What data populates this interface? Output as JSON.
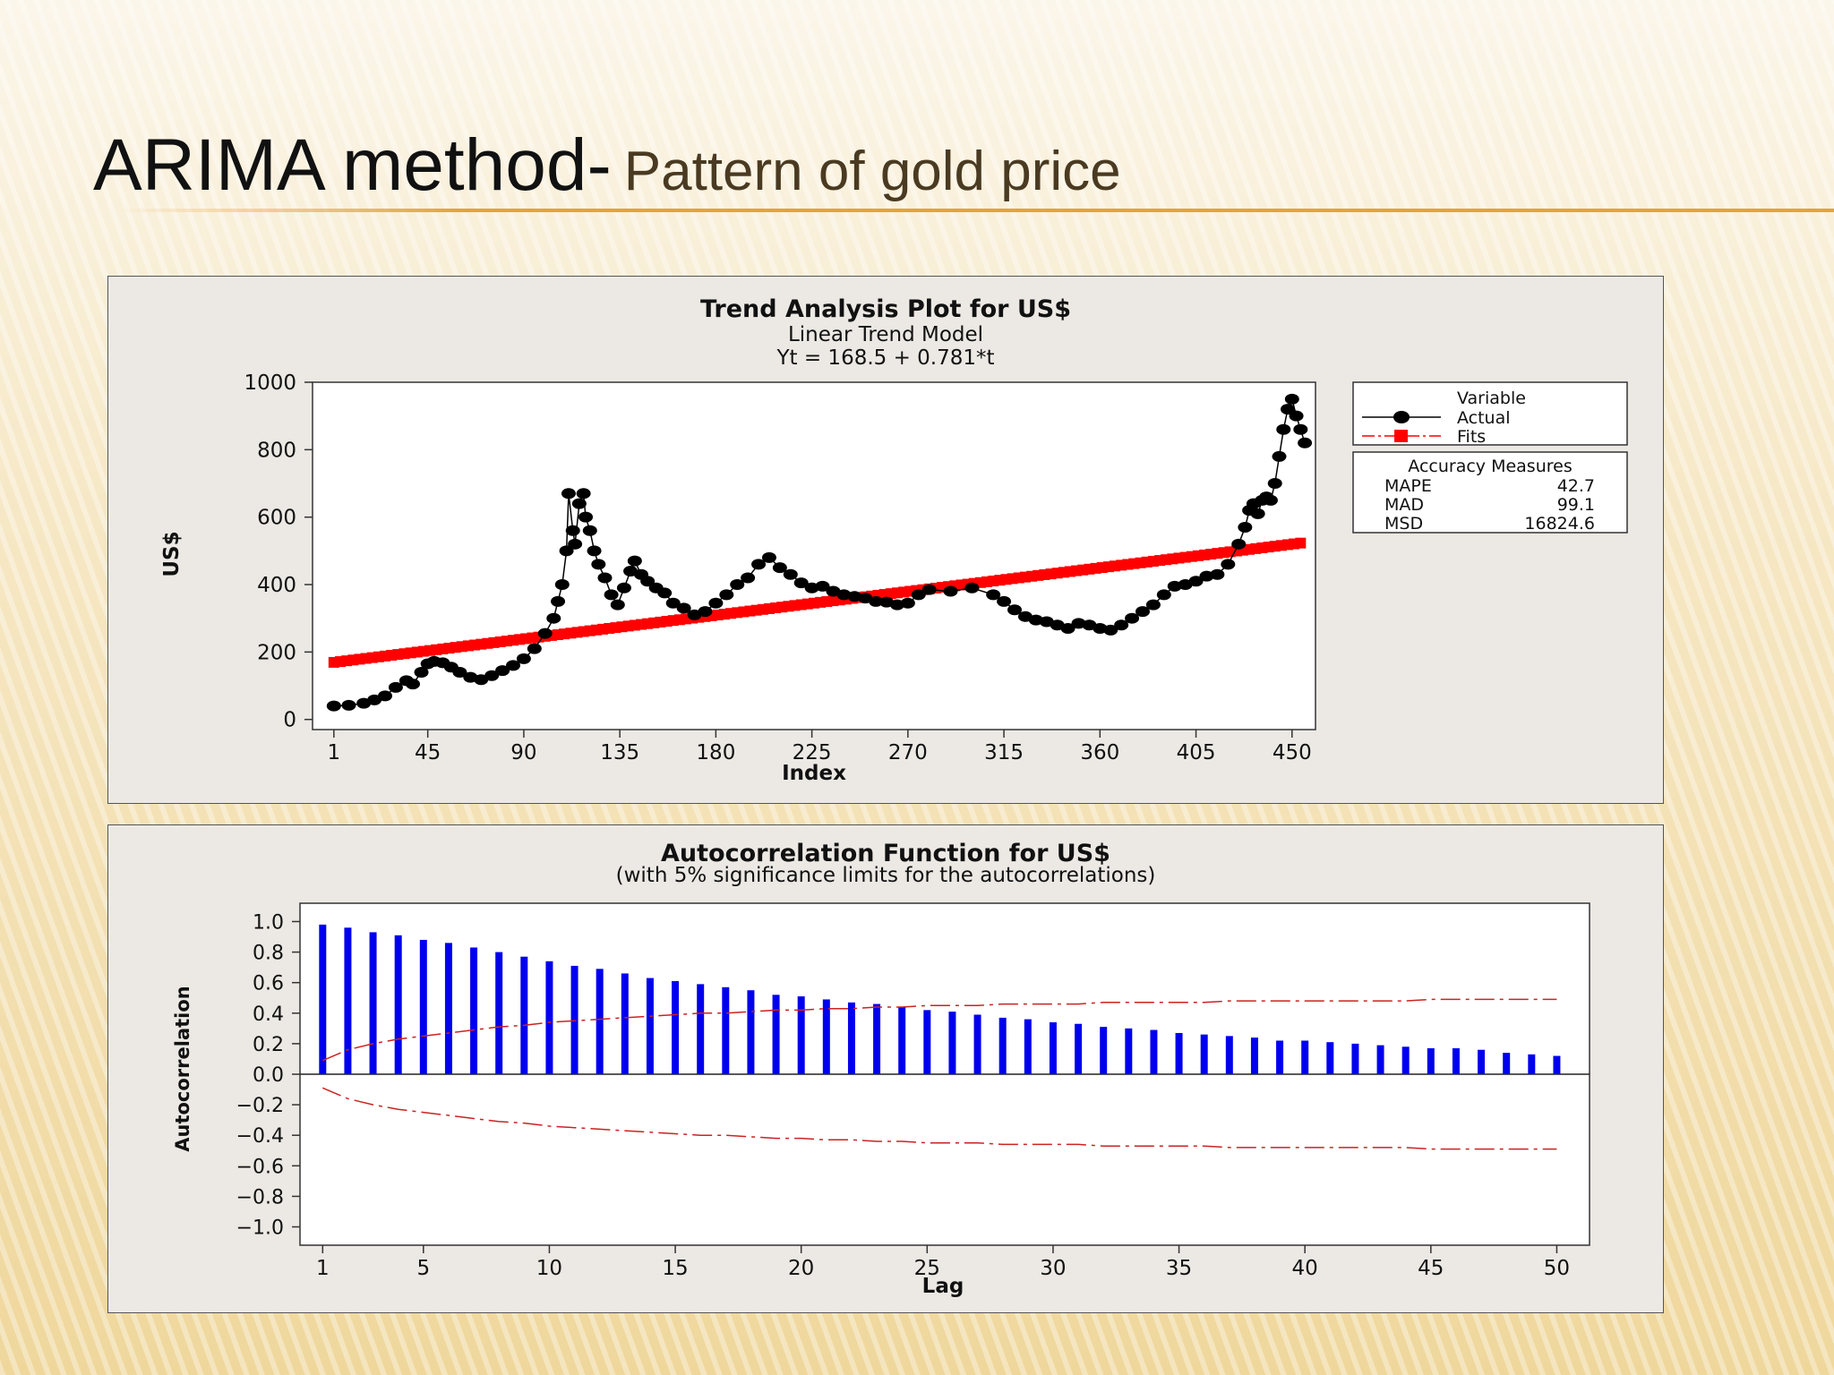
{
  "slide": {
    "title_main": "ARIMA method-",
    "title_sub": "Pattern of gold price",
    "accent_color": "#e8a13a"
  },
  "chart_data": [
    {
      "type": "line",
      "title": "Trend Analysis Plot for US$",
      "subtitle": "Linear Trend Model",
      "equation": "Yt = 168.5 + 0.781*t",
      "xlabel": "Index",
      "ylabel": "US$",
      "xticks": [
        1,
        45,
        90,
        135,
        180,
        225,
        270,
        315,
        360,
        405,
        450
      ],
      "yticks": [
        0,
        200,
        400,
        600,
        800,
        1000
      ],
      "xlim": [
        -9,
        461
      ],
      "ylim": [
        -30,
        1000
      ],
      "grid": false,
      "legend": {
        "title": "Variable",
        "position": "right",
        "entries": [
          {
            "name": "Actual",
            "color": "#000000",
            "marker": "circle"
          },
          {
            "name": "Fits",
            "color": "#ff0000",
            "marker": "square"
          }
        ]
      },
      "accuracy": {
        "title": "Accuracy Measures",
        "rows": [
          {
            "name": "MAPE",
            "value": "42.7"
          },
          {
            "name": "MAD",
            "value": "99.1"
          },
          {
            "name": "MSD",
            "value": "16824.6"
          }
        ]
      },
      "series": [
        {
          "name": "Actual",
          "color": "#000000",
          "x": [
            1,
            8,
            15,
            20,
            25,
            30,
            35,
            38,
            42,
            45,
            48,
            52,
            56,
            60,
            65,
            70,
            75,
            80,
            85,
            90,
            95,
            100,
            104,
            106,
            108,
            110,
            111,
            113,
            114,
            116,
            118,
            119,
            121,
            123,
            125,
            128,
            131,
            134,
            137,
            140,
            142,
            145,
            148,
            152,
            156,
            160,
            165,
            170,
            175,
            180,
            185,
            190,
            195,
            200,
            205,
            210,
            215,
            220,
            225,
            230,
            235,
            240,
            245,
            250,
            255,
            260,
            265,
            270,
            275,
            280,
            290,
            300,
            310,
            315,
            320,
            325,
            330,
            335,
            340,
            345,
            350,
            355,
            360,
            365,
            370,
            375,
            380,
            385,
            390,
            395,
            400,
            405,
            410,
            415,
            420,
            425,
            428,
            430,
            432,
            434,
            436,
            438,
            440,
            442,
            444,
            446,
            448,
            450,
            452,
            454,
            456
          ],
          "values": [
            40,
            42,
            48,
            58,
            70,
            95,
            115,
            105,
            140,
            165,
            172,
            168,
            155,
            140,
            125,
            118,
            130,
            145,
            160,
            180,
            210,
            255,
            300,
            350,
            400,
            500,
            670,
            560,
            520,
            640,
            670,
            600,
            560,
            500,
            460,
            420,
            370,
            340,
            390,
            440,
            470,
            430,
            410,
            390,
            375,
            345,
            330,
            310,
            320,
            345,
            370,
            400,
            420,
            460,
            480,
            450,
            430,
            405,
            390,
            395,
            380,
            370,
            365,
            360,
            350,
            348,
            340,
            345,
            370,
            385,
            380,
            390,
            370,
            350,
            325,
            305,
            295,
            290,
            280,
            270,
            285,
            280,
            270,
            265,
            280,
            300,
            320,
            340,
            370,
            395,
            400,
            410,
            425,
            430,
            460,
            520,
            570,
            620,
            640,
            610,
            650,
            660,
            650,
            700,
            780,
            860,
            920,
            950,
            900,
            860,
            820
          ]
        },
        {
          "name": "Fits",
          "color": "#ff0000",
          "x": [
            1,
            456
          ],
          "values": [
            169.3,
            524.6
          ]
        }
      ]
    },
    {
      "type": "bar",
      "title": "Autocorrelation Function for US$",
      "subtitle": "(with 5% significance limits for the autocorrelations)",
      "xlabel": "Lag",
      "ylabel": "Autocorrelation",
      "xticks": [
        1,
        5,
        10,
        15,
        20,
        25,
        30,
        35,
        40,
        45,
        50
      ],
      "yticks": [
        -1.0,
        -0.8,
        -0.6,
        -0.4,
        -0.2,
        0.0,
        0.2,
        0.4,
        0.6,
        0.8,
        1.0
      ],
      "xlim": [
        0.1,
        51.3
      ],
      "ylim": [
        -1.12,
        1.12
      ],
      "bar_color": "#0000ee",
      "limit_color": "#cc2222",
      "lags": [
        1,
        2,
        3,
        4,
        5,
        6,
        7,
        8,
        9,
        10,
        11,
        12,
        13,
        14,
        15,
        16,
        17,
        18,
        19,
        20,
        21,
        22,
        23,
        24,
        25,
        26,
        27,
        28,
        29,
        30,
        31,
        32,
        33,
        34,
        35,
        36,
        37,
        38,
        39,
        40,
        41,
        42,
        43,
        44,
        45,
        46,
        47,
        48,
        49,
        50
      ],
      "values": [
        0.98,
        0.96,
        0.93,
        0.91,
        0.88,
        0.86,
        0.83,
        0.8,
        0.77,
        0.74,
        0.71,
        0.69,
        0.66,
        0.63,
        0.61,
        0.59,
        0.57,
        0.55,
        0.52,
        0.51,
        0.49,
        0.47,
        0.46,
        0.44,
        0.42,
        0.41,
        0.39,
        0.37,
        0.36,
        0.34,
        0.33,
        0.31,
        0.3,
        0.29,
        0.27,
        0.26,
        0.25,
        0.24,
        0.22,
        0.22,
        0.21,
        0.2,
        0.19,
        0.18,
        0.17,
        0.17,
        0.16,
        0.14,
        0.13,
        0.12
      ],
      "upper_limit": [
        0.09,
        0.16,
        0.2,
        0.23,
        0.25,
        0.27,
        0.29,
        0.31,
        0.32,
        0.34,
        0.35,
        0.36,
        0.37,
        0.38,
        0.39,
        0.4,
        0.4,
        0.41,
        0.42,
        0.42,
        0.43,
        0.43,
        0.44,
        0.44,
        0.45,
        0.45,
        0.45,
        0.46,
        0.46,
        0.46,
        0.46,
        0.47,
        0.47,
        0.47,
        0.47,
        0.47,
        0.48,
        0.48,
        0.48,
        0.48,
        0.48,
        0.48,
        0.48,
        0.48,
        0.49,
        0.49,
        0.49,
        0.49,
        0.49,
        0.49
      ]
    }
  ]
}
